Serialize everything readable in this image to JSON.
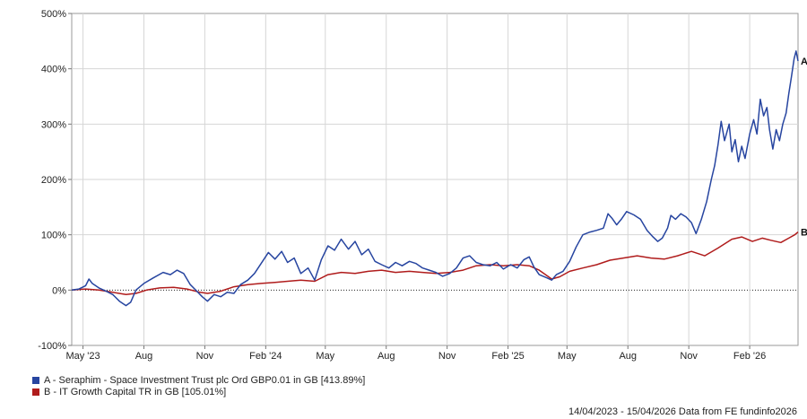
{
  "chart_data": {
    "type": "line",
    "x_ticks": [
      "May '23",
      "Aug",
      "Nov",
      "Feb '24",
      "May",
      "Aug",
      "Nov",
      "Feb '25",
      "May",
      "Aug",
      "Nov",
      "Feb '26"
    ],
    "y_ticks": [
      "500%",
      "400%",
      "300%",
      "200%",
      "100%",
      "0%",
      "-100%"
    ],
    "ylim": [
      -100,
      500
    ],
    "x_range": [
      "2023-04-14",
      "2026-04-15"
    ],
    "grid": true,
    "legend_position": "bottom-left",
    "series": [
      {
        "name": "A - Seraphim - Space Investment Trust plc Ord GBP0.01 in GB [413.89%]",
        "end_label": "A",
        "color": "#2745a0",
        "points": [
          [
            "2023-04-14",
            0
          ],
          [
            "2023-04-25",
            2
          ],
          [
            "2023-05-05",
            8
          ],
          [
            "2023-05-10",
            20
          ],
          [
            "2023-05-15",
            12
          ],
          [
            "2023-05-25",
            4
          ],
          [
            "2023-06-05",
            -2
          ],
          [
            "2023-06-15",
            -8
          ],
          [
            "2023-06-25",
            -20
          ],
          [
            "2023-07-05",
            -28
          ],
          [
            "2023-07-12",
            -22
          ],
          [
            "2023-07-20",
            0
          ],
          [
            "2023-08-01",
            12
          ],
          [
            "2023-08-15",
            22
          ],
          [
            "2023-08-30",
            32
          ],
          [
            "2023-09-10",
            28
          ],
          [
            "2023-09-20",
            36
          ],
          [
            "2023-09-30",
            30
          ],
          [
            "2023-10-10",
            10
          ],
          [
            "2023-10-20",
            -2
          ],
          [
            "2023-10-28",
            -12
          ],
          [
            "2023-11-05",
            -20
          ],
          [
            "2023-11-15",
            -8
          ],
          [
            "2023-11-25",
            -12
          ],
          [
            "2023-12-05",
            -4
          ],
          [
            "2023-12-15",
            -6
          ],
          [
            "2023-12-25",
            10
          ],
          [
            "2024-01-05",
            18
          ],
          [
            "2024-01-15",
            30
          ],
          [
            "2024-01-25",
            48
          ],
          [
            "2024-02-05",
            68
          ],
          [
            "2024-02-15",
            56
          ],
          [
            "2024-02-25",
            70
          ],
          [
            "2024-03-05",
            50
          ],
          [
            "2024-03-15",
            58
          ],
          [
            "2024-03-25",
            30
          ],
          [
            "2024-04-05",
            40
          ],
          [
            "2024-04-15",
            18
          ],
          [
            "2024-04-25",
            55
          ],
          [
            "2024-05-05",
            80
          ],
          [
            "2024-05-15",
            72
          ],
          [
            "2024-05-25",
            92
          ],
          [
            "2024-06-05",
            74
          ],
          [
            "2024-06-15",
            88
          ],
          [
            "2024-06-25",
            64
          ],
          [
            "2024-07-05",
            74
          ],
          [
            "2024-07-15",
            52
          ],
          [
            "2024-07-25",
            46
          ],
          [
            "2024-08-05",
            40
          ],
          [
            "2024-08-15",
            50
          ],
          [
            "2024-08-25",
            44
          ],
          [
            "2024-09-05",
            52
          ],
          [
            "2024-09-15",
            48
          ],
          [
            "2024-09-25",
            40
          ],
          [
            "2024-10-05",
            36
          ],
          [
            "2024-10-15",
            32
          ],
          [
            "2024-10-25",
            25
          ],
          [
            "2024-11-05",
            30
          ],
          [
            "2024-11-15",
            40
          ],
          [
            "2024-11-25",
            58
          ],
          [
            "2024-12-05",
            62
          ],
          [
            "2024-12-15",
            50
          ],
          [
            "2024-12-25",
            46
          ],
          [
            "2025-01-05",
            44
          ],
          [
            "2025-01-15",
            50
          ],
          [
            "2025-01-25",
            38
          ],
          [
            "2025-02-05",
            46
          ],
          [
            "2025-02-15",
            40
          ],
          [
            "2025-02-25",
            55
          ],
          [
            "2025-03-05",
            60
          ],
          [
            "2025-03-12",
            42
          ],
          [
            "2025-03-20",
            28
          ],
          [
            "2025-04-01",
            22
          ],
          [
            "2025-04-08",
            18
          ],
          [
            "2025-04-15",
            28
          ],
          [
            "2025-04-25",
            34
          ],
          [
            "2025-05-05",
            52
          ],
          [
            "2025-05-15",
            78
          ],
          [
            "2025-05-25",
            100
          ],
          [
            "2025-06-05",
            105
          ],
          [
            "2025-06-15",
            108
          ],
          [
            "2025-06-25",
            112
          ],
          [
            "2025-07-02",
            138
          ],
          [
            "2025-07-08",
            130
          ],
          [
            "2025-07-15",
            118
          ],
          [
            "2025-07-22",
            128
          ],
          [
            "2025-07-30",
            142
          ],
          [
            "2025-08-10",
            136
          ],
          [
            "2025-08-20",
            128
          ],
          [
            "2025-08-30",
            108
          ],
          [
            "2025-09-08",
            96
          ],
          [
            "2025-09-15",
            88
          ],
          [
            "2025-09-22",
            94
          ],
          [
            "2025-09-30",
            112
          ],
          [
            "2025-10-05",
            135
          ],
          [
            "2025-10-12",
            128
          ],
          [
            "2025-10-20",
            138
          ],
          [
            "2025-10-28",
            132
          ],
          [
            "2025-11-05",
            122
          ],
          [
            "2025-11-12",
            102
          ],
          [
            "2025-11-20",
            128
          ],
          [
            "2025-11-28",
            160
          ],
          [
            "2025-12-05",
            200
          ],
          [
            "2025-12-10",
            225
          ],
          [
            "2025-12-15",
            262
          ],
          [
            "2025-12-20",
            305
          ],
          [
            "2025-12-25",
            270
          ],
          [
            "2026-01-01",
            300
          ],
          [
            "2026-01-05",
            250
          ],
          [
            "2026-01-10",
            272
          ],
          [
            "2026-01-15",
            232
          ],
          [
            "2026-01-20",
            260
          ],
          [
            "2026-01-25",
            238
          ],
          [
            "2026-02-01",
            282
          ],
          [
            "2026-02-07",
            308
          ],
          [
            "2026-02-12",
            282
          ],
          [
            "2026-02-17",
            345
          ],
          [
            "2026-02-22",
            315
          ],
          [
            "2026-02-27",
            330
          ],
          [
            "2026-03-03",
            290
          ],
          [
            "2026-03-08",
            255
          ],
          [
            "2026-03-13",
            290
          ],
          [
            "2026-03-18",
            270
          ],
          [
            "2026-03-23",
            300
          ],
          [
            "2026-03-28",
            320
          ],
          [
            "2026-04-01",
            355
          ],
          [
            "2026-04-05",
            385
          ],
          [
            "2026-04-09",
            418
          ],
          [
            "2026-04-12",
            432
          ],
          [
            "2026-04-15",
            414
          ]
        ]
      },
      {
        "name": "B - IT Growth Capital TR in GB [105.01%]",
        "end_label": "B",
        "color": "#b01c1c",
        "points": [
          [
            "2023-04-14",
            0
          ],
          [
            "2023-05-05",
            2
          ],
          [
            "2023-05-25",
            0
          ],
          [
            "2023-06-15",
            -4
          ],
          [
            "2023-07-05",
            -8
          ],
          [
            "2023-07-20",
            -6
          ],
          [
            "2023-08-05",
            0
          ],
          [
            "2023-08-25",
            4
          ],
          [
            "2023-09-15",
            5
          ],
          [
            "2023-10-05",
            2
          ],
          [
            "2023-10-25",
            -4
          ],
          [
            "2023-11-05",
            -6
          ],
          [
            "2023-11-25",
            -2
          ],
          [
            "2023-12-15",
            6
          ],
          [
            "2024-01-05",
            10
          ],
          [
            "2024-01-25",
            12
          ],
          [
            "2024-02-15",
            14
          ],
          [
            "2024-03-05",
            16
          ],
          [
            "2024-03-25",
            18
          ],
          [
            "2024-04-15",
            16
          ],
          [
            "2024-05-05",
            28
          ],
          [
            "2024-05-25",
            32
          ],
          [
            "2024-06-15",
            30
          ],
          [
            "2024-07-05",
            34
          ],
          [
            "2024-07-25",
            36
          ],
          [
            "2024-08-15",
            32
          ],
          [
            "2024-09-05",
            34
          ],
          [
            "2024-09-25",
            32
          ],
          [
            "2024-10-15",
            30
          ],
          [
            "2024-11-05",
            32
          ],
          [
            "2024-11-25",
            36
          ],
          [
            "2024-12-15",
            44
          ],
          [
            "2025-01-05",
            46
          ],
          [
            "2025-01-25",
            44
          ],
          [
            "2025-02-15",
            46
          ],
          [
            "2025-03-05",
            44
          ],
          [
            "2025-03-20",
            36
          ],
          [
            "2025-04-08",
            20
          ],
          [
            "2025-04-20",
            24
          ],
          [
            "2025-05-05",
            34
          ],
          [
            "2025-05-25",
            40
          ],
          [
            "2025-06-15",
            46
          ],
          [
            "2025-07-05",
            54
          ],
          [
            "2025-07-25",
            58
          ],
          [
            "2025-08-15",
            62
          ],
          [
            "2025-09-05",
            58
          ],
          [
            "2025-09-25",
            56
          ],
          [
            "2025-10-15",
            62
          ],
          [
            "2025-11-05",
            70
          ],
          [
            "2025-11-25",
            62
          ],
          [
            "2025-12-15",
            76
          ],
          [
            "2026-01-05",
            92
          ],
          [
            "2026-01-20",
            96
          ],
          [
            "2026-02-05",
            88
          ],
          [
            "2026-02-20",
            94
          ],
          [
            "2026-03-05",
            90
          ],
          [
            "2026-03-20",
            86
          ],
          [
            "2026-04-01",
            94
          ],
          [
            "2026-04-10",
            100
          ],
          [
            "2026-04-15",
            105
          ]
        ]
      }
    ]
  },
  "footer": "14/04/2023 - 15/04/2026 Data from FE fundinfo2026"
}
